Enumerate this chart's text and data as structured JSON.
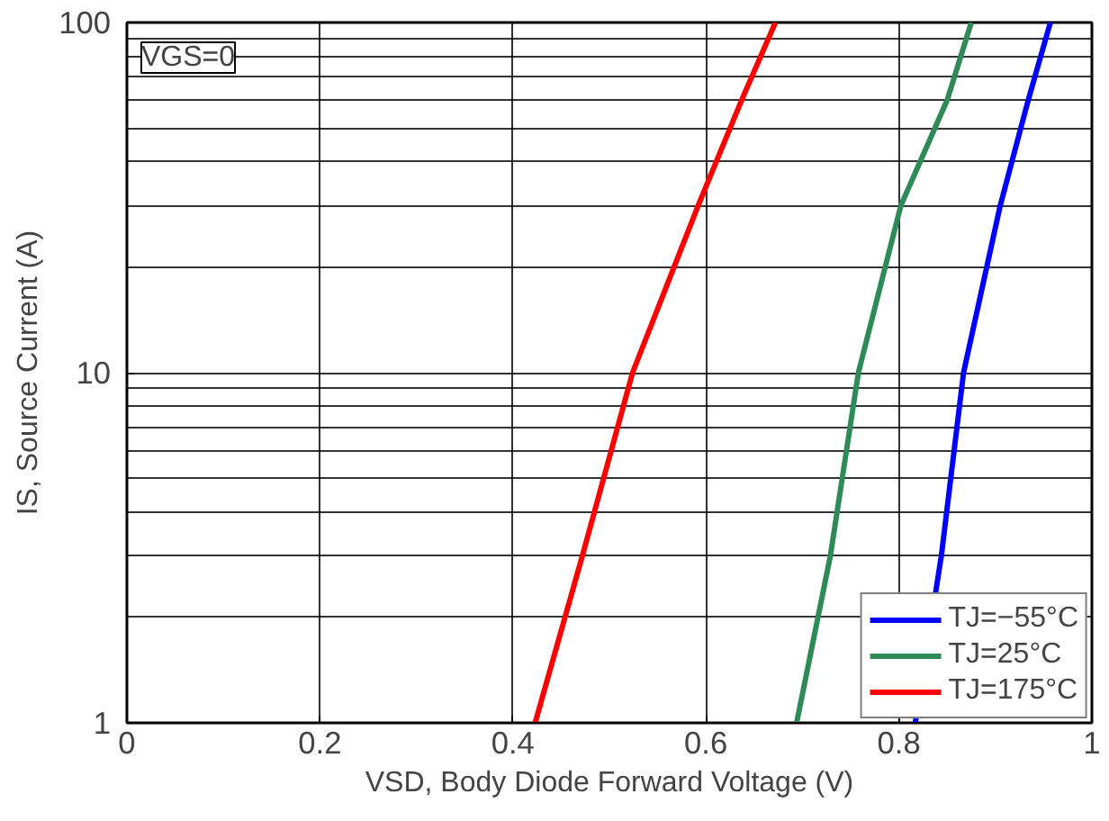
{
  "chart_data": {
    "type": "line",
    "xlabel": "VSD, Body Diode Forward Voltage (V)",
    "ylabel": "IS, Source Current (A)",
    "annotations": [
      "VGS=0"
    ],
    "xlim": [
      0,
      1
    ],
    "xticks": [
      0,
      0.2,
      0.4,
      0.6,
      0.8,
      1
    ],
    "ylim": [
      1,
      100
    ],
    "yticks": [
      1,
      10,
      100
    ],
    "log": "y",
    "grid": true,
    "legend": "bottom right",
    "line_style": "solid",
    "series": [
      {
        "name": "TJ=−55°C",
        "color": "#0000ff",
        "x": [
          0.817,
          0.844,
          0.867,
          0.905,
          0.934,
          0.957
        ],
        "values": [
          1,
          3,
          10,
          30,
          60,
          100
        ]
      },
      {
        "name": "TJ=25°C",
        "color": "#2e8b57",
        "x": [
          0.694,
          0.729,
          0.758,
          0.802,
          0.85,
          0.875
        ],
        "values": [
          1,
          3,
          10,
          30,
          60,
          100
        ]
      },
      {
        "name": "TJ=175°C",
        "color": "#ff0000",
        "x": [
          0.423,
          0.472,
          0.524,
          0.592,
          0.637,
          0.672
        ],
        "values": [
          1,
          3,
          10,
          30,
          60,
          100
        ]
      }
    ]
  }
}
